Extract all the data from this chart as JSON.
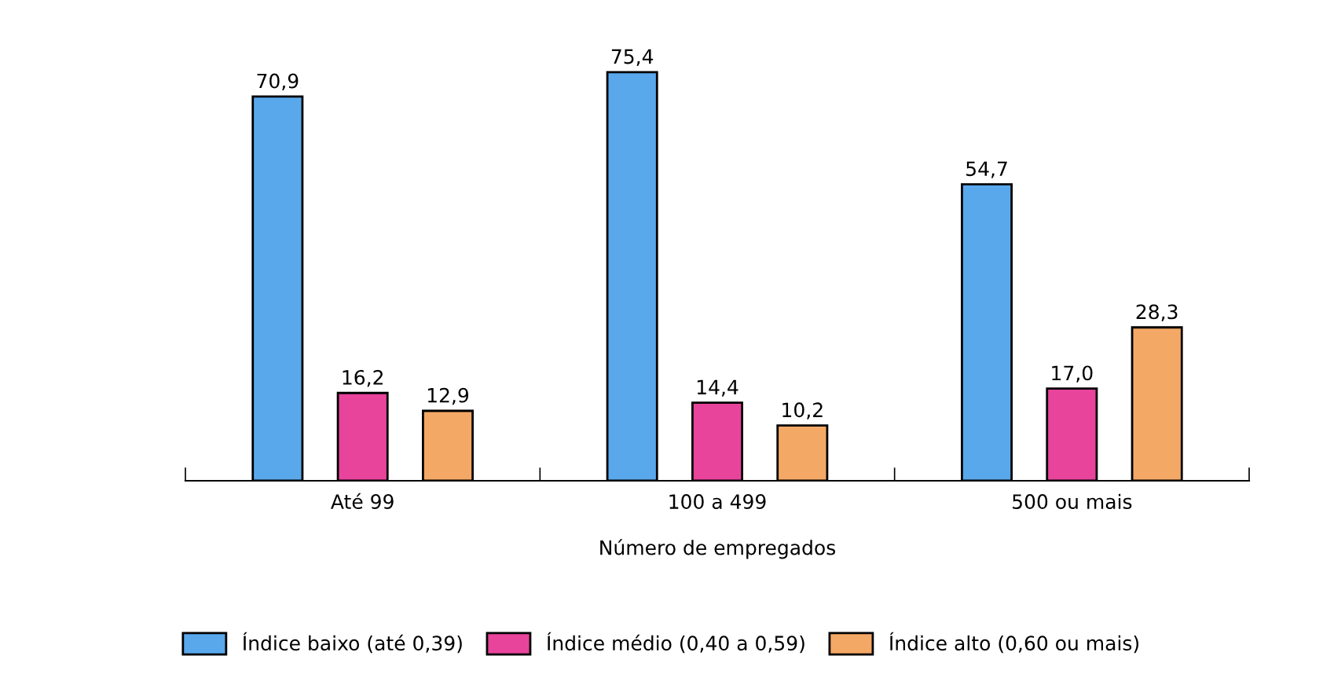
{
  "chart_data": {
    "type": "bar",
    "xlabel": "Número de empregados",
    "categories": [
      "Até 99",
      "100 a 499",
      "500 ou mais"
    ],
    "series": [
      {
        "name": "Índice baixo (até 0,39)",
        "color": "#5aa8ec",
        "values": [
          70.9,
          75.4,
          54.7
        ],
        "value_labels": [
          "70,9",
          "75,4",
          "54,7"
        ]
      },
      {
        "name": "Índice médio (0,40 a 0,59)",
        "color": "#e8449c",
        "values": [
          16.2,
          14.4,
          17.0
        ],
        "value_labels": [
          "16,2",
          "14,4",
          "17,0"
        ]
      },
      {
        "name": "Índice alto (0,60 ou mais)",
        "color": "#f4a866",
        "values": [
          12.9,
          10.2,
          28.3
        ],
        "value_labels": [
          "12,9",
          "10,2",
          "28,3"
        ]
      }
    ],
    "legend": "bottom"
  }
}
